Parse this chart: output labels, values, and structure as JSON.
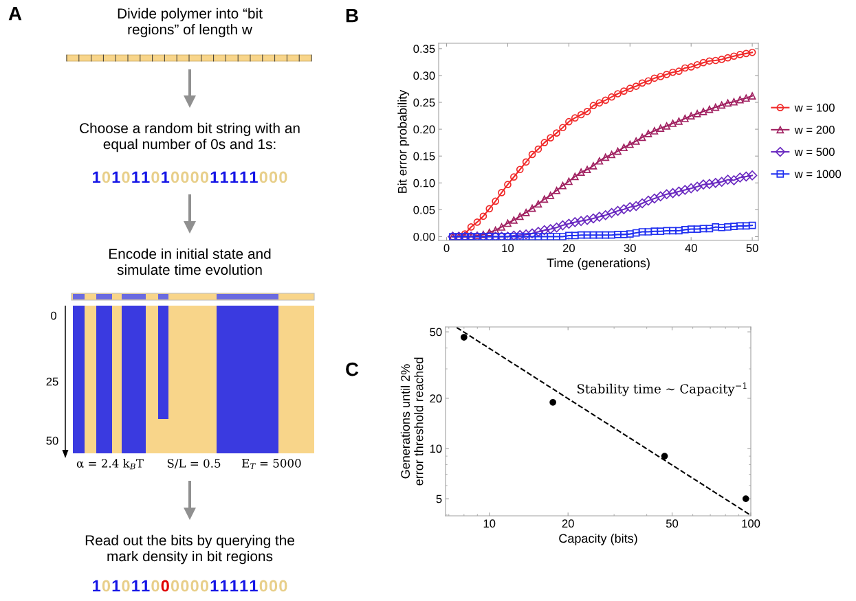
{
  "chart_data": [
    {
      "type": "other",
      "annotations": [
        "A",
        "Divide polymer into “bit\nregions” of length w",
        "Choose a random bit string with an\nequal number of 0s and 1s:",
        "10101101000011111000",
        "Encode in initial state and\nsimulate time evolution",
        "0",
        "25",
        "50",
        "α = 2.4 k$_{B}$T",
        "S/L = 0.5",
        "E$_{T}$ = 5000",
        "Read out the bits by querying the\nmark density in bit regions",
        "10101100000011111000"
      ]
    },
    {
      "type": "line",
      "annotations": [
        "B"
      ],
      "xlabel": "Time (generations)",
      "ylabel": "Bit error probability",
      "legend": "right",
      "x": [
        1,
        2,
        3,
        4,
        5,
        6,
        7,
        8,
        9,
        10,
        11,
        12,
        13,
        14,
        15,
        16,
        17,
        18,
        19,
        20,
        21,
        22,
        23,
        24,
        25,
        26,
        27,
        28,
        29,
        30,
        31,
        32,
        33,
        34,
        35,
        36,
        37,
        38,
        39,
        40,
        41,
        42,
        43,
        44,
        45,
        46,
        47,
        48,
        49,
        50
      ],
      "xlim": [
        -1.3,
        51
      ],
      "xticks": [
        0,
        10,
        20,
        30,
        40,
        50
      ],
      "ylim": [
        -0.007,
        0.36
      ],
      "yticks": [
        {
          "value": 0,
          "label": "0.00"
        },
        {
          "value": 0.05,
          "label": "0.05"
        },
        {
          "value": 0.1,
          "label": "0.10"
        },
        {
          "value": 0.15,
          "label": "0.15"
        },
        {
          "value": 0.2,
          "label": "0.20"
        },
        {
          "value": 0.25,
          "label": "0.25"
        },
        {
          "value": 0.3,
          "label": "0.30"
        },
        {
          "value": 0.35,
          "label": "0.35"
        }
      ],
      "series": [
        {
          "name": "w = 100",
          "color": "#f02a2a",
          "marker": "circle",
          "values": [
            0,
            0,
            0.005,
            0.018,
            0.027,
            0.038,
            0.052,
            0.066,
            0.082,
            0.097,
            0.111,
            0.125,
            0.139,
            0.153,
            0.163,
            0.175,
            0.184,
            0.193,
            0.203,
            0.214,
            0.221,
            0.227,
            0.233,
            0.244,
            0.249,
            0.254,
            0.26,
            0.266,
            0.271,
            0.276,
            0.28,
            0.286,
            0.29,
            0.295,
            0.298,
            0.302,
            0.306,
            0.308,
            0.314,
            0.316,
            0.32,
            0.324,
            0.327,
            0.328,
            0.33,
            0.333,
            0.336,
            0.339,
            0.341,
            0.343
          ]
        },
        {
          "name": "w = 200",
          "color": "#a02060",
          "marker": "triangle",
          "values": [
            0,
            0,
            0,
            0,
            0.002,
            0.004,
            0.008,
            0.012,
            0.018,
            0.025,
            0.031,
            0.038,
            0.045,
            0.053,
            0.061,
            0.07,
            0.077,
            0.086,
            0.095,
            0.103,
            0.112,
            0.12,
            0.125,
            0.132,
            0.141,
            0.148,
            0.153,
            0.159,
            0.166,
            0.172,
            0.178,
            0.185,
            0.192,
            0.197,
            0.202,
            0.206,
            0.211,
            0.215,
            0.22,
            0.225,
            0.229,
            0.233,
            0.237,
            0.241,
            0.245,
            0.249,
            0.251,
            0.255,
            0.258,
            0.262
          ]
        },
        {
          "name": "w = 500",
          "color": "#6a2ac0",
          "marker": "diamond",
          "values": [
            0,
            0,
            0,
            0,
            0,
            0,
            0,
            0,
            0,
            0,
            0.002,
            0.003,
            0.004,
            0.006,
            0.009,
            0.012,
            0.014,
            0.017,
            0.021,
            0.024,
            0.027,
            0.029,
            0.031,
            0.034,
            0.037,
            0.04,
            0.044,
            0.048,
            0.051,
            0.055,
            0.057,
            0.062,
            0.067,
            0.071,
            0.075,
            0.079,
            0.081,
            0.084,
            0.087,
            0.09,
            0.093,
            0.097,
            0.098,
            0.1,
            0.102,
            0.106,
            0.105,
            0.11,
            0.112,
            0.114
          ]
        },
        {
          "name": "w = 1000",
          "color": "#2030f0",
          "marker": "square",
          "values": [
            0,
            0,
            0,
            0,
            0,
            0,
            0,
            0,
            0,
            0,
            0,
            0,
            0,
            0,
            0,
            0,
            0,
            0,
            0,
            0.002,
            0.002,
            0.003,
            0.003,
            0.003,
            0.003,
            0.003,
            0.003,
            0.004,
            0.004,
            0.005,
            0.007,
            0.009,
            0.009,
            0.01,
            0.01,
            0.011,
            0.011,
            0.011,
            0.013,
            0.014,
            0.014,
            0.015,
            0.015,
            0.018,
            0.017,
            0.018,
            0.019,
            0.02,
            0.02,
            0.021
          ]
        }
      ]
    },
    {
      "type": "scatter",
      "annotations": [
        "C",
        "Stability time ∼ Capacity$^{−1}$"
      ],
      "xlabel": "Capacity (bits)",
      "ylabel": "Generations until 2%\nerror threshold reached",
      "log": "xy",
      "xlim": [
        6.8,
        100
      ],
      "xticks": [
        10,
        20,
        50,
        100
      ],
      "ylim": [
        3.95,
        53.5
      ],
      "yticks": [
        5,
        10,
        20,
        50
      ],
      "marker": "circle",
      "series": [
        {
          "color": "#000000",
          "x": [
            8,
            17.5,
            46.8,
            95.7
          ],
          "values": [
            46.4,
            18.9,
            9.0,
            5.0
          ]
        },
        {
          "type": "line",
          "line_style": "dashed",
          "marker": "none",
          "color": "#000000",
          "x": [
            7.5,
            100
          ],
          "values": [
            53.1,
            3.98
          ]
        }
      ]
    }
  ]
}
